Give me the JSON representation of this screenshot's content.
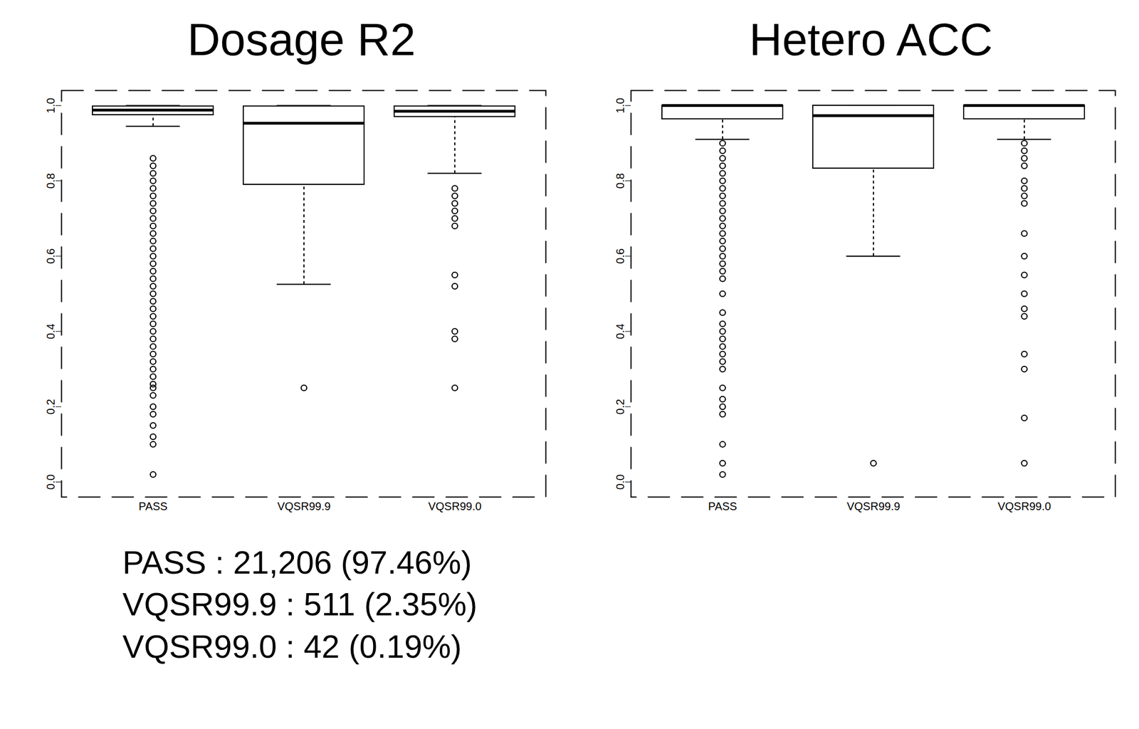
{
  "chart_data": [
    {
      "type": "box",
      "title": "Dosage R2",
      "color": "#000000",
      "categories": [
        "PASS",
        "VQSR99.9",
        "VQSR99.0"
      ],
      "boxes": [
        {
          "whisker_low": 0.945,
          "q1": 0.975,
          "median": 0.988,
          "q3": 0.998,
          "whisker_high": 1.0,
          "outliers": [
            0.86,
            0.84,
            0.82,
            0.8,
            0.78,
            0.76,
            0.74,
            0.72,
            0.7,
            0.68,
            0.66,
            0.64,
            0.62,
            0.6,
            0.58,
            0.56,
            0.54,
            0.52,
            0.5,
            0.48,
            0.46,
            0.44,
            0.42,
            0.4,
            0.38,
            0.36,
            0.34,
            0.32,
            0.3,
            0.28,
            0.26,
            0.25,
            0.23,
            0.2,
            0.18,
            0.15,
            0.12,
            0.1,
            0.02
          ]
        },
        {
          "whisker_low": 0.525,
          "q1": 0.79,
          "median": 0.953,
          "q3": 0.998,
          "whisker_high": 1.0,
          "outliers": [
            0.25
          ]
        },
        {
          "whisker_low": 0.82,
          "q1": 0.97,
          "median": 0.985,
          "q3": 0.998,
          "whisker_high": 1.0,
          "outliers": [
            0.78,
            0.76,
            0.74,
            0.72,
            0.7,
            0.68,
            0.55,
            0.52,
            0.4,
            0.38,
            0.25
          ]
        }
      ],
      "ylim": [
        -0.04,
        1.04
      ],
      "yticks": [
        {
          "value": 0,
          "label": "0.0"
        },
        0.2,
        0.4,
        0.6,
        0.8,
        {
          "value": 1,
          "label": "1.0"
        }
      ],
      "annotations": [
        "PASS : 21,206 (97.46%)",
        "VQSR99.9 : 511 (2.35%)",
        "VQSR99.0 : 42 (0.19%)"
      ]
    },
    {
      "type": "box",
      "title": "Hetero ACC",
      "color": "#000000",
      "categories": [
        "PASS",
        "VQSR99.9",
        "VQSR99.0"
      ],
      "boxes": [
        {
          "whisker_low": 0.91,
          "q1": 0.964,
          "median": 1.0,
          "q3": 1.0,
          "whisker_high": 1.0,
          "outliers": [
            0.9,
            0.88,
            0.86,
            0.84,
            0.82,
            0.8,
            0.78,
            0.76,
            0.74,
            0.72,
            0.7,
            0.68,
            0.66,
            0.64,
            0.62,
            0.6,
            0.58,
            0.56,
            0.54,
            0.5,
            0.45,
            0.42,
            0.4,
            0.38,
            0.36,
            0.34,
            0.32,
            0.3,
            0.25,
            0.22,
            0.2,
            0.18,
            0.1,
            0.05,
            0.02
          ]
        },
        {
          "whisker_low": 0.6,
          "q1": 0.833,
          "median": 0.973,
          "q3": 1.0,
          "whisker_high": 1.0,
          "outliers": [
            0.05
          ]
        },
        {
          "whisker_low": 0.91,
          "q1": 0.964,
          "median": 1.0,
          "q3": 1.0,
          "whisker_high": 1.0,
          "outliers": [
            0.9,
            0.88,
            0.86,
            0.84,
            0.8,
            0.78,
            0.76,
            0.74,
            0.66,
            0.6,
            0.55,
            0.5,
            0.46,
            0.44,
            0.34,
            0.3,
            0.17,
            0.05
          ]
        }
      ],
      "ylim": [
        -0.04,
        1.04
      ],
      "yticks": [
        {
          "value": 0,
          "label": "0.0"
        },
        0.2,
        0.4,
        0.6,
        0.8,
        {
          "value": 1,
          "label": "1.0"
        }
      ]
    }
  ]
}
